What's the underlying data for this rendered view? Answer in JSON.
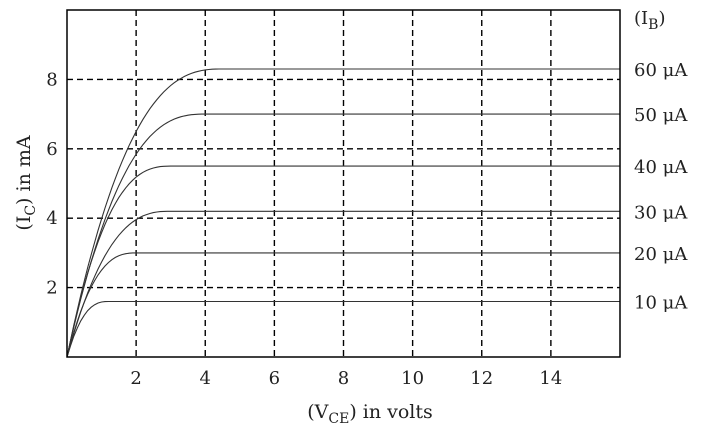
{
  "chart_data": {
    "type": "line",
    "xlabel": "(V_CE) in volts",
    "xlabel_parts": {
      "open": "(V",
      "sub": "CE",
      "close": ") in volts"
    },
    "ylabel": "(I_C) in mA",
    "ylabel_parts": {
      "open": "(I",
      "sub": "C",
      "close": ") in mA"
    },
    "legend_title": "(I_B)",
    "legend_title_parts": {
      "open": "(I",
      "sub": "B",
      "close": ")"
    },
    "xlim": [
      0,
      16
    ],
    "ylim": [
      0,
      10
    ],
    "x_ticks": [
      2,
      4,
      6,
      8,
      10,
      12,
      14
    ],
    "y_ticks": [
      2,
      4,
      6,
      8
    ],
    "grid": true,
    "legend_position": "right",
    "series": [
      {
        "name": "10 μA",
        "saturation": 1.6,
        "knee": 1.2
      },
      {
        "name": "20 μA",
        "saturation": 3.0,
        "knee": 2.0
      },
      {
        "name": "30 μA",
        "saturation": 4.2,
        "knee": 3.0
      },
      {
        "name": "40 μA",
        "saturation": 5.5,
        "knee": 3.0
      },
      {
        "name": "50 μA",
        "saturation": 7.0,
        "knee": 4.0
      },
      {
        "name": "60 μA",
        "saturation": 8.3,
        "knee": 4.5
      }
    ]
  }
}
